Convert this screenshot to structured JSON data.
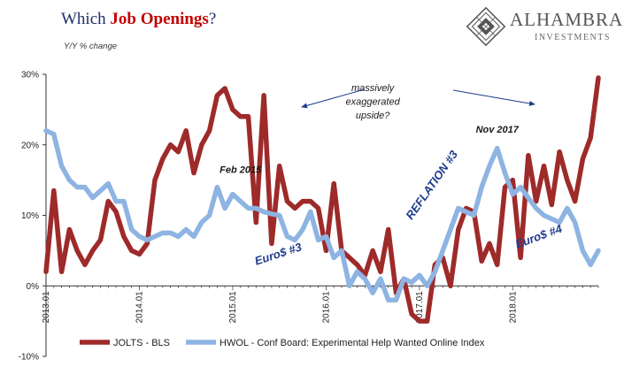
{
  "header": {
    "title_prefix": "Which ",
    "title_highlight": "Job Openings",
    "title_suffix": "?",
    "ylabel": "Y/Y % change"
  },
  "logo": {
    "name": "ALHAMBRA",
    "tagline": "INVESTMENTS"
  },
  "colors": {
    "jolts": "#9e2a2a",
    "hwol": "#8db4e2",
    "annotation": "#1f3b8c",
    "title": "#1f2f6b",
    "title_highlight": "#c00000"
  },
  "chart_data": {
    "type": "line",
    "xlabel": "",
    "ylabel": "Y/Y % change",
    "ylim": [
      -10,
      30
    ],
    "yticks": [
      "30%",
      "20%",
      "10%",
      "0%",
      "-10%"
    ],
    "ytick_values": [
      30,
      20,
      10,
      0,
      -10
    ],
    "x_range": [
      "2013-01",
      "2018-12"
    ],
    "x_ticks": [
      "2013.01",
      "2014.01",
      "2015.01",
      "2016.01",
      "2017.01",
      "2018.01"
    ],
    "x": [
      "2013-01",
      "2013-02",
      "2013-03",
      "2013-04",
      "2013-05",
      "2013-06",
      "2013-07",
      "2013-08",
      "2013-09",
      "2013-10",
      "2013-11",
      "2013-12",
      "2014-01",
      "2014-02",
      "2014-03",
      "2014-04",
      "2014-05",
      "2014-06",
      "2014-07",
      "2014-08",
      "2014-09",
      "2014-10",
      "2014-11",
      "2014-12",
      "2015-01",
      "2015-02",
      "2015-03",
      "2015-04",
      "2015-05",
      "2015-06",
      "2015-07",
      "2015-08",
      "2015-09",
      "2015-10",
      "2015-11",
      "2015-12",
      "2016-01",
      "2016-02",
      "2016-03",
      "2016-04",
      "2016-05",
      "2016-06",
      "2016-07",
      "2016-08",
      "2016-09",
      "2016-10",
      "2016-11",
      "2016-12",
      "2017-01",
      "2017-02",
      "2017-03",
      "2017-04",
      "2017-05",
      "2017-06",
      "2017-07",
      "2017-08",
      "2017-09",
      "2017-10",
      "2017-11",
      "2017-12",
      "2018-01",
      "2018-02",
      "2018-03",
      "2018-04",
      "2018-05",
      "2018-06",
      "2018-07",
      "2018-08",
      "2018-09",
      "2018-10",
      "2018-11",
      "2018-12"
    ],
    "series": [
      {
        "name": "JOLTS - BLS",
        "color": "#9e2a2a",
        "values": [
          2,
          13.5,
          2,
          8,
          5,
          3,
          5,
          6.5,
          12,
          10.5,
          7,
          5,
          4.5,
          6,
          15,
          18,
          20,
          19,
          22,
          16,
          20,
          22,
          27,
          28,
          25,
          24,
          24,
          9,
          27,
          6,
          17,
          12,
          11,
          12,
          12,
          11,
          5,
          14.5,
          5,
          4,
          3,
          1.5,
          5,
          2,
          8,
          -1,
          1,
          -4,
          -5,
          -5,
          3,
          4,
          0,
          8,
          11,
          10.5,
          3.5,
          6,
          3,
          14,
          15,
          4,
          18.5,
          12,
          17,
          11.5,
          19,
          15,
          12,
          18,
          21,
          29.5
        ]
      },
      {
        "name": "HWOL - Conf Board: Experimental Help Wanted Online Index",
        "color": "#8db4e2",
        "values": [
          22,
          21.5,
          17,
          15,
          14,
          14,
          12.5,
          13.5,
          14.5,
          12,
          12,
          8,
          7,
          6.5,
          7,
          7.5,
          7.5,
          7,
          8,
          7,
          9,
          10,
          14,
          11,
          13,
          12,
          11,
          11,
          10.5,
          10.2,
          10,
          7,
          6.5,
          8,
          10.5,
          6.5,
          7,
          4,
          5,
          0,
          2,
          1,
          -1,
          1,
          -2,
          -2,
          1,
          0.5,
          1.5,
          0,
          2,
          5,
          8,
          11,
          10.5,
          10,
          14,
          17,
          19.5,
          16,
          13,
          14,
          12.5,
          11,
          10,
          9.5,
          9,
          11,
          9,
          5,
          3,
          5
        ]
      }
    ],
    "annotations": [
      {
        "text": "Feb 2015",
        "x": "2015-02",
        "y": 16
      },
      {
        "text": "Euro$ #3",
        "x": "2015-07",
        "y": 4
      },
      {
        "text": "massively",
        "x": "2016-07",
        "y": 27.6
      },
      {
        "text": "exaggerated",
        "x": "2016-07",
        "y": 25.7
      },
      {
        "text": "upside?",
        "x": "2016-07",
        "y": 23.7
      },
      {
        "text": "REFLATION #3",
        "x": "2017-03",
        "y": 14
      },
      {
        "text": "Nov 2017",
        "x": "2017-11",
        "y": 21.7
      },
      {
        "text": "Euro$ #4",
        "x": "2018-02",
        "y": 6.5
      }
    ],
    "legend_placement": "bottom",
    "grid": false
  }
}
